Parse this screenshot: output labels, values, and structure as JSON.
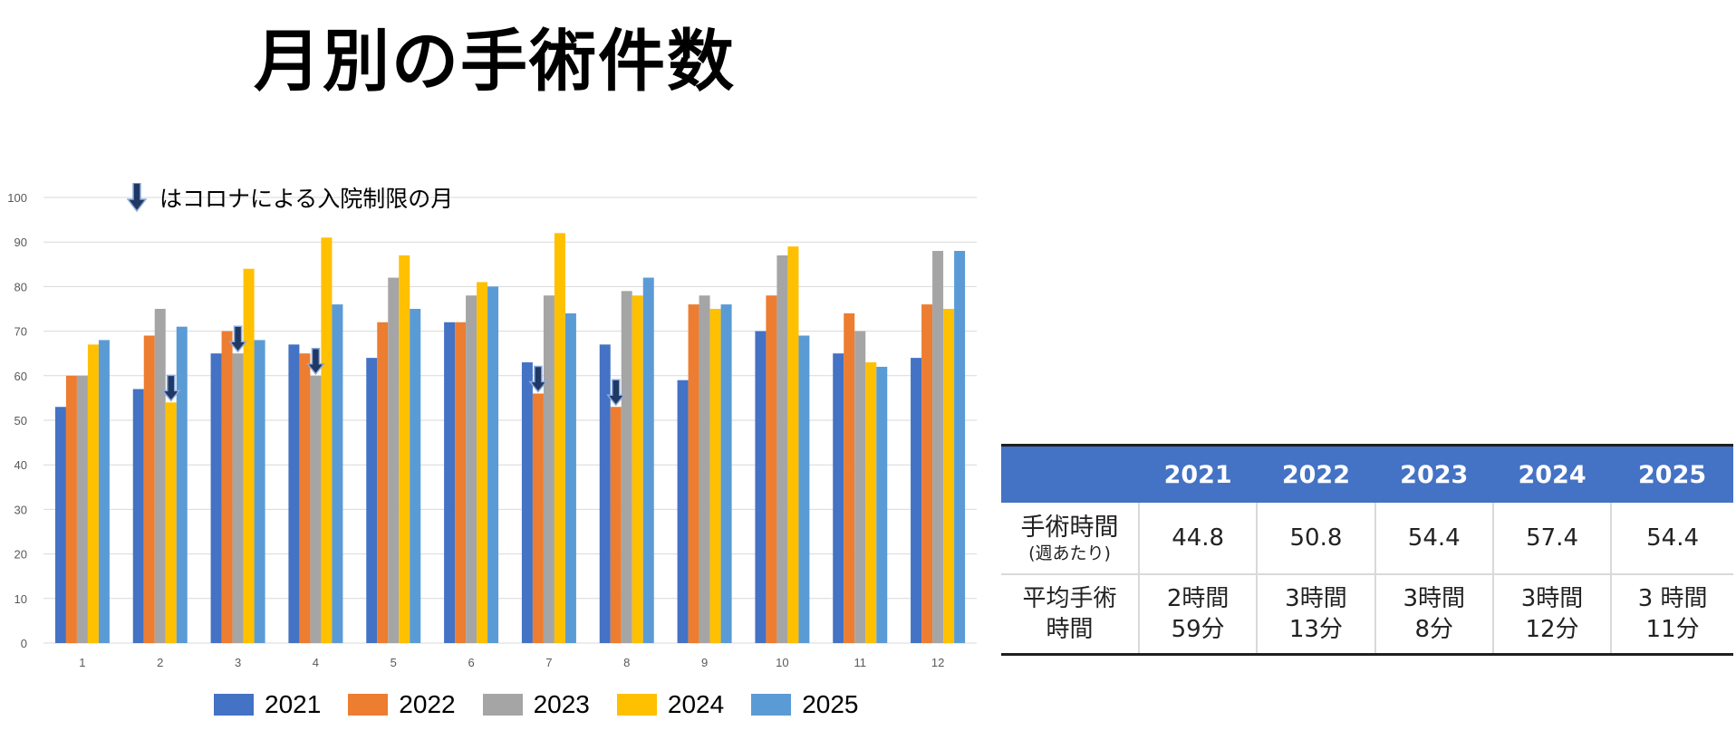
{
  "title": "月別の手術件数",
  "note": {
    "text": "はコロナによる入院制限の月",
    "icon": "down-arrow-icon"
  },
  "chart_data": {
    "type": "bar",
    "categories": [
      "1",
      "2",
      "3",
      "4",
      "5",
      "6",
      "7",
      "8",
      "9",
      "10",
      "11",
      "12"
    ],
    "ylim": [
      0,
      100
    ],
    "yticks": [
      0,
      10,
      20,
      30,
      40,
      50,
      60,
      70,
      80,
      90,
      100
    ],
    "grid": true,
    "legend_position": "bottom",
    "series": [
      {
        "name": "2021",
        "color": "#4472c4",
        "values": [
          53,
          57,
          65,
          67,
          64,
          72,
          63,
          67,
          59,
          70,
          65,
          64
        ]
      },
      {
        "name": "2022",
        "color": "#ed7d31",
        "values": [
          60,
          69,
          70,
          65,
          72,
          72,
          56,
          53,
          76,
          78,
          74,
          76
        ]
      },
      {
        "name": "2023",
        "color": "#a5a5a5",
        "values": [
          60,
          75,
          65,
          60,
          82,
          78,
          78,
          79,
          78,
          87,
          70,
          88
        ]
      },
      {
        "name": "2024",
        "color": "#ffc000",
        "values": [
          67,
          54,
          84,
          91,
          87,
          81,
          92,
          78,
          75,
          89,
          63,
          75
        ]
      },
      {
        "name": "2025",
        "color": "#5b9bd5",
        "values": [
          68,
          71,
          68,
          76,
          75,
          80,
          74,
          82,
          76,
          69,
          62,
          88
        ]
      }
    ],
    "restriction_markers": [
      {
        "category": "2",
        "series": "2024"
      },
      {
        "category": "3",
        "series": "2023"
      },
      {
        "category": "4",
        "series": "2023"
      },
      {
        "category": "7",
        "series": "2022"
      },
      {
        "category": "8",
        "series": "2022"
      }
    ]
  },
  "table": {
    "headers": [
      "",
      "2021",
      "2022",
      "2023",
      "2024",
      "2025"
    ],
    "rows": [
      {
        "label": "手術時間",
        "sublabel": "(週あたり)",
        "cells": [
          "44.8",
          "50.8",
          "54.4",
          "57.4",
          "54.4"
        ]
      },
      {
        "label_line1": "平均手術",
        "label_line2": "時間",
        "cells": [
          {
            "line1": "2時間",
            "line2": "59分"
          },
          {
            "line1": "3時間",
            "line2": "13分"
          },
          {
            "line1": "3時間",
            "line2": "8分"
          },
          {
            "line1": "3時間",
            "line2": "12分"
          },
          {
            "line1": "3 時間",
            "line2": "11分"
          }
        ]
      }
    ]
  }
}
